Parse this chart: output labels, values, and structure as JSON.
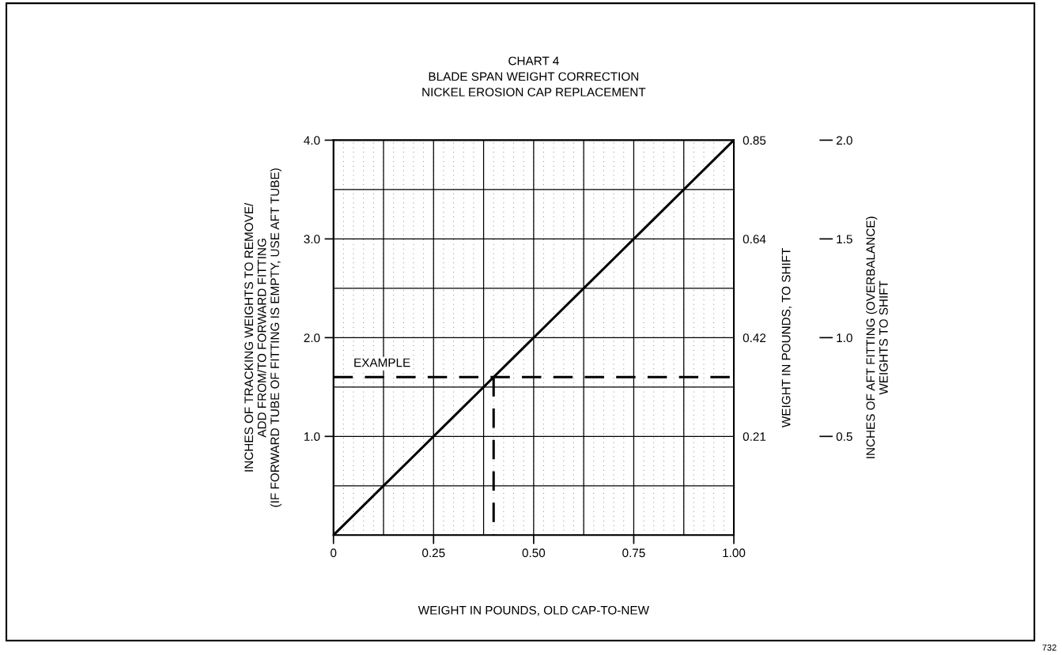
{
  "chart_data": {
    "type": "line",
    "title": "CHART 4\nBLADE SPAN WEIGHT CORRECTION\nNICKEL EROSION CAP REPLACEMENT",
    "xlabel": "WEIGHT IN POUNDS, OLD CAP-TO-NEW",
    "ylabel": "INCHES OF TRACKING WEIGHTS TO REMOVE/\nADD FROM/TO FORWARD FITTING\n(IF FORWARD TUBE OF FITTING IS EMPTY, USE AFT TUBE)",
    "y2label": "WEIGHT IN POUNDS, TO SHIFT",
    "y3label": "INCHES OF AFT FITTING (OVERBALANCE)\nWEIGHTS TO SHIFT",
    "series": [
      {
        "color": "#000000",
        "x": [
          0,
          1
        ],
        "values": [
          0,
          4
        ],
        "line_style": "solid"
      },
      {
        "color": "#000000",
        "x": [
          0.4,
          0.4
        ],
        "values": [
          1.6,
          0
        ],
        "line_style": "dashed"
      }
    ],
    "xlim": [
      0,
      1
    ],
    "xticks": [
      {
        "value": 0,
        "label": "0"
      },
      0.25,
      {
        "value": 0.5,
        "label": "0.50"
      },
      0.75,
      {
        "value": 1,
        "label": "1.00"
      }
    ],
    "ylim": [
      0,
      4
    ],
    "yticks": [
      {
        "value": 1,
        "label": "1.0"
      },
      {
        "value": 2,
        "label": "2.0"
      },
      {
        "value": 3,
        "label": "3.0"
      },
      {
        "value": 4,
        "label": "4.0"
      }
    ],
    "y2lim": [
      0,
      0.85
    ],
    "y2ticks": [
      {
        "value": 0.2125,
        "label": "0.21"
      },
      {
        "value": 0.425,
        "label": "0.42"
      },
      {
        "value": 0.6375,
        "label": "0.64"
      },
      0.85
    ],
    "y3lim": [
      0,
      2
    ],
    "y3ticks": [
      0.5,
      {
        "value": 1,
        "label": "1.0"
      },
      1.5,
      {
        "value": 2,
        "label": "2.0"
      }
    ],
    "ref_lines": [
      {
        "axis": "y",
        "value": 1.6,
        "label": "EXAMPLE",
        "color": "#000000",
        "line_style": "dashed"
      }
    ],
    "grid": true,
    "legend": false,
    "annotations": [
      "732"
    ]
  }
}
